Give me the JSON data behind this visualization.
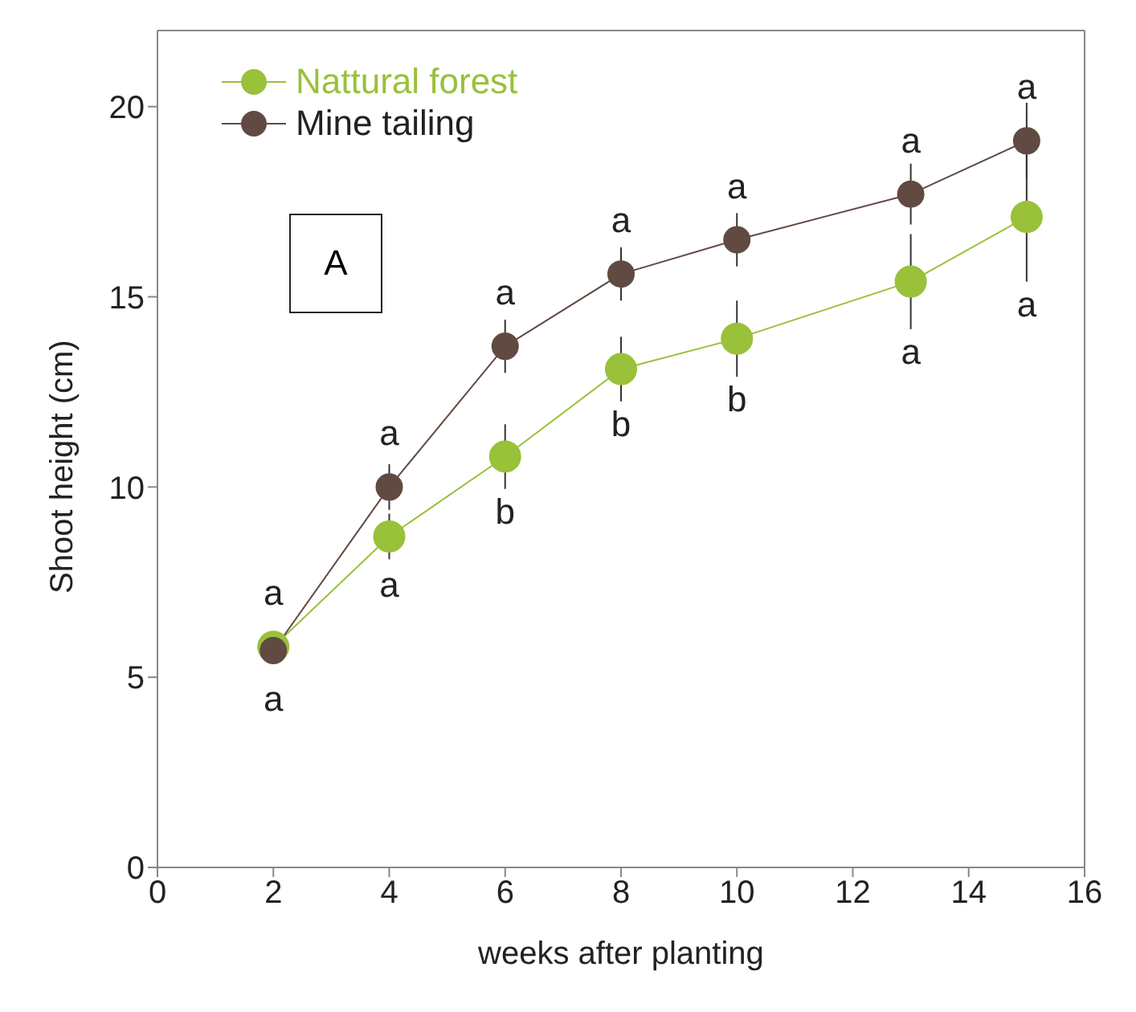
{
  "chart_data": {
    "type": "line",
    "xlabel": "weeks after planting",
    "ylabel": "Shoot height (cm)",
    "x": [
      2,
      4,
      6,
      8,
      10,
      13,
      15
    ],
    "series": [
      {
        "name": "Nattural forest",
        "color": "#99c13a",
        "values": [
          5.8,
          8.7,
          10.8,
          13.1,
          13.9,
          15.4,
          17.1
        ],
        "errors": [
          0.2,
          0.6,
          0.85,
          0.85,
          1.0,
          1.25,
          1.7
        ]
      },
      {
        "name": "Mine tailing",
        "color": "#614a42",
        "values": [
          5.7,
          10.0,
          13.7,
          15.6,
          16.5,
          17.7,
          19.1
        ],
        "errors": [
          0.3,
          0.6,
          0.7,
          0.7,
          0.7,
          0.8,
          1.0
        ]
      }
    ],
    "xlim": [
      0,
      16
    ],
    "xticks": [
      0,
      2,
      4,
      6,
      8,
      10,
      12,
      14,
      16
    ],
    "ylim": [
      0,
      22
    ],
    "yticks": [
      0,
      5,
      10,
      15,
      20
    ],
    "grid": false,
    "legend": "top left",
    "marker": "circle",
    "line_style": "solid",
    "annotations": [
      "A",
      {
        "text": "a",
        "x": 2,
        "y": 5.8
      },
      {
        "text": "a",
        "x": 2,
        "y": 5.7
      },
      {
        "text": "a",
        "x": 4,
        "y": 10.0
      },
      {
        "text": "a",
        "x": 4,
        "y": 8.7
      },
      {
        "text": "a",
        "x": 6,
        "y": 13.7
      },
      {
        "text": "b",
        "x": 6,
        "y": 10.8
      },
      {
        "text": "a",
        "x": 8,
        "y": 15.6
      },
      {
        "text": "b",
        "x": 8,
        "y": 13.1
      },
      {
        "text": "a",
        "x": 10,
        "y": 16.5
      },
      {
        "text": "b",
        "x": 10,
        "y": 13.9
      },
      {
        "text": "a",
        "x": 13,
        "y": 17.7
      },
      {
        "text": "a",
        "x": 13,
        "y": 15.4
      },
      {
        "text": "a",
        "x": 15,
        "y": 19.1
      },
      {
        "text": "a",
        "x": 15,
        "y": 17.1
      }
    ]
  }
}
